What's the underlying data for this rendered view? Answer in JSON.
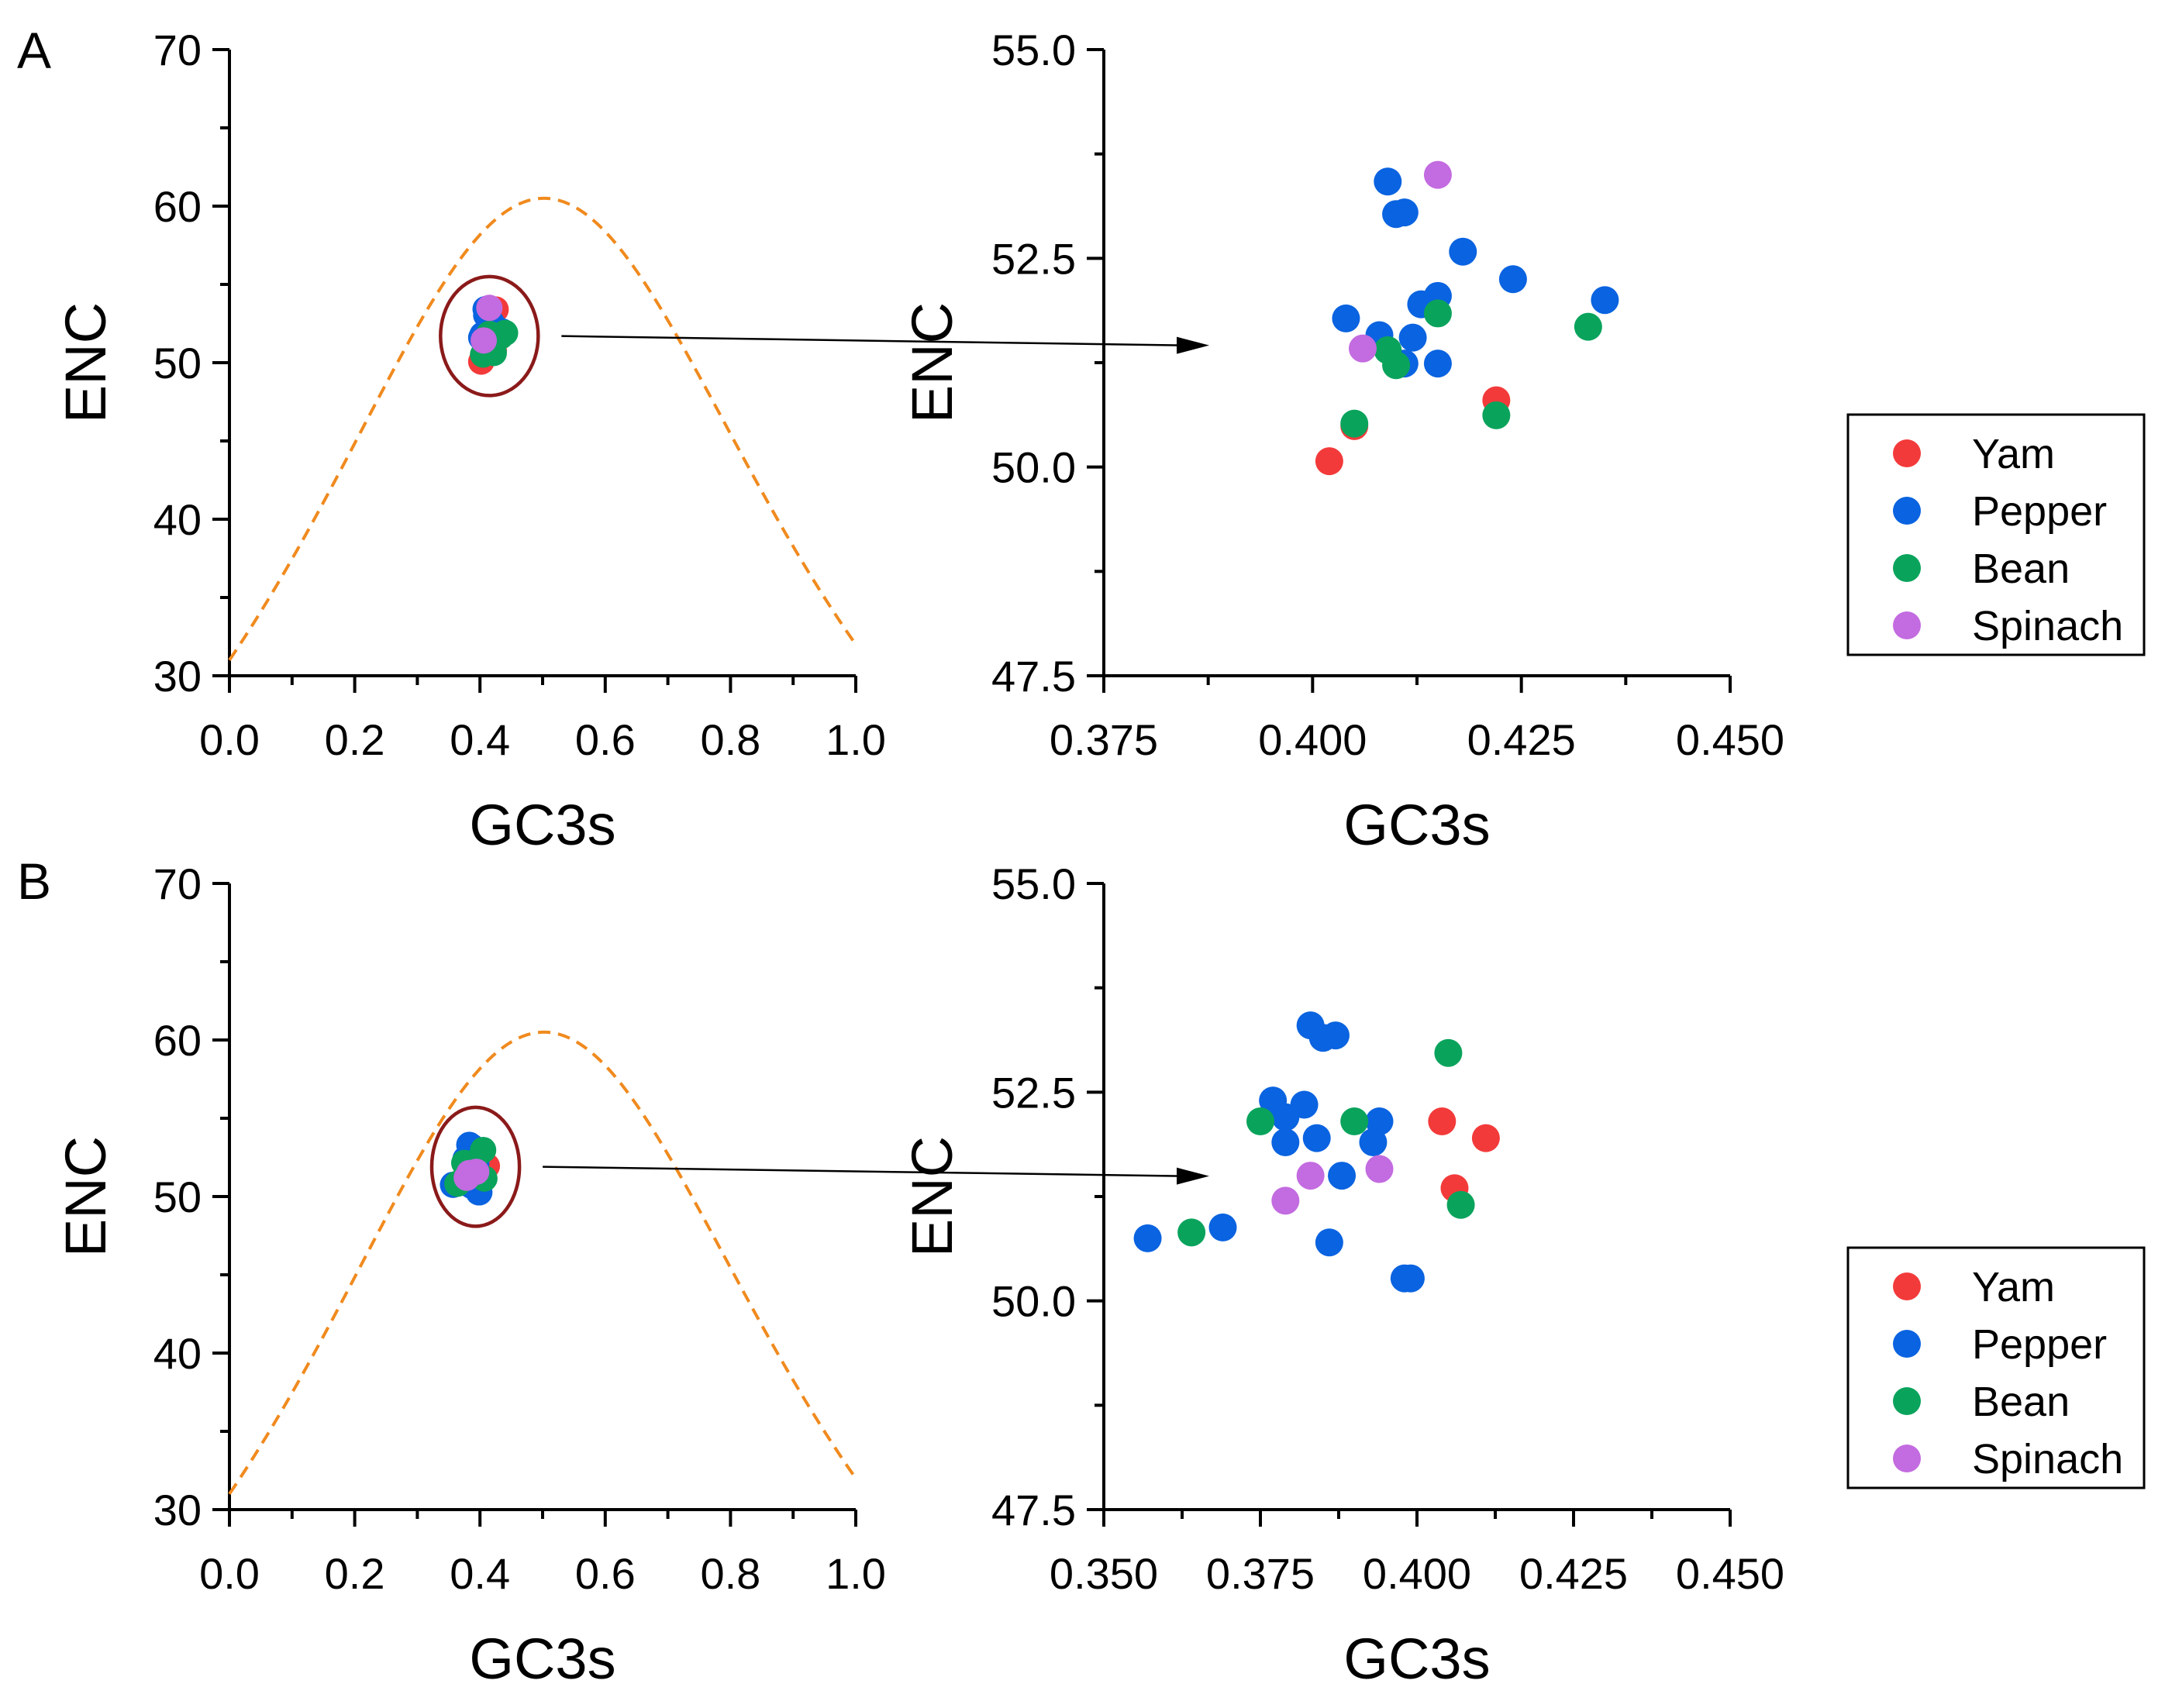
{
  "figure": {
    "panels": [
      {
        "letter": "A"
      },
      {
        "letter": "B"
      }
    ]
  },
  "colors": {
    "Yam": "#f33a3a",
    "Pepper": "#0a63e0",
    "Bean": "#0aa35c",
    "Spinach": "#c36be0",
    "curve": "#f08a1e",
    "ellipse": "#8b1a1a",
    "axis": "#000000"
  },
  "legend": [
    {
      "label": "Yam",
      "color": "#f33a3a"
    },
    {
      "label": "Pepper",
      "color": "#0a63e0"
    },
    {
      "label": "Bean",
      "color": "#0aa35c"
    },
    {
      "label": "Spinach",
      "color": "#c36be0"
    }
  ],
  "chart_data": [
    {
      "id": "A-overview",
      "panel": "A",
      "type": "scatter",
      "xlabel": "GC3s",
      "ylabel": "ENC",
      "xlim": [
        0.0,
        1.0
      ],
      "ylim": [
        30,
        70
      ],
      "xticks": [
        0.0,
        0.2,
        0.4,
        0.6,
        0.8,
        1.0
      ],
      "xtick_labels": [
        "0.0",
        "0.2",
        "0.4",
        "0.6",
        "0.8",
        "1.0"
      ],
      "yticks": [
        30,
        40,
        50,
        60,
        70
      ],
      "ytick_labels": [
        "30",
        "40",
        "50",
        "60",
        "70"
      ],
      "x_minor_step": 0.1,
      "y_minor_step": 5,
      "expected_curve": {
        "formula": "ENC = 2 + GC3s + 29/(GC3s^2 + (1-GC3s)^2)",
        "style": "dashed",
        "color": "#f08a1e"
      },
      "zoom_region": {
        "cx": 0.415,
        "cy": 51.7,
        "rx": 0.078,
        "ry": 3.8
      },
      "series": [
        {
          "name": "Yam",
          "points": [
            [
              0.402,
              50.07
            ],
            [
              0.405,
              50.49
            ],
            [
              0.422,
              50.8
            ],
            [
              0.42,
              51.0
            ],
            [
              0.425,
              53.4
            ]
          ]
        },
        {
          "name": "Pepper",
          "points": [
            [
              0.404,
              51.78
            ],
            [
              0.409,
              53.42
            ],
            [
              0.41,
              53.03
            ],
            [
              0.411,
              53.05
            ],
            [
              0.418,
              52.58
            ],
            [
              0.424,
              52.25
            ],
            [
              0.435,
              52.0
            ],
            [
              0.408,
              51.58
            ],
            [
              0.412,
              51.55
            ],
            [
              0.413,
              51.95
            ],
            [
              0.415,
              52.05
            ],
            [
              0.411,
              51.24
            ],
            [
              0.415,
              51.24
            ],
            [
              0.41,
              51.8
            ],
            [
              0.402,
              51.6
            ]
          ]
        },
        {
          "name": "Bean",
          "points": [
            [
              0.405,
              50.52
            ],
            [
              0.409,
              51.4
            ],
            [
              0.41,
              51.22
            ],
            [
              0.415,
              51.84
            ],
            [
              0.422,
              50.62
            ],
            [
              0.433,
              51.68
            ],
            [
              0.44,
              51.9
            ]
          ]
        },
        {
          "name": "Spinach",
          "points": [
            [
              0.406,
              51.42
            ],
            [
              0.415,
              53.5
            ]
          ]
        }
      ]
    },
    {
      "id": "A-zoom",
      "panel": "A",
      "type": "scatter",
      "xlabel": "GC3s",
      "ylabel": "ENC",
      "xlim": [
        0.375,
        0.45
      ],
      "ylim": [
        47.5,
        55.0
      ],
      "xticks": [
        0.375,
        0.4,
        0.425,
        0.45
      ],
      "xtick_labels": [
        "0.375",
        "0.400",
        "0.425",
        "0.450"
      ],
      "yticks": [
        47.5,
        50.0,
        52.5,
        55.0
      ],
      "ytick_labels": [
        "47.5",
        "50.0",
        "52.5",
        "55.0"
      ],
      "x_minor_step": 0.0125,
      "y_minor_step": 1.25,
      "series": [
        {
          "name": "Yam",
          "points": [
            [
              0.402,
              50.07
            ],
            [
              0.405,
              50.49
            ],
            [
              0.422,
              50.8
            ]
          ]
        },
        {
          "name": "Pepper",
          "points": [
            [
              0.404,
              51.78
            ],
            [
              0.409,
              53.42
            ],
            [
              0.41,
              53.03
            ],
            [
              0.411,
              53.05
            ],
            [
              0.418,
              52.58
            ],
            [
              0.424,
              52.25
            ],
            [
              0.435,
              52.0
            ],
            [
              0.408,
              51.58
            ],
            [
              0.412,
              51.55
            ],
            [
              0.413,
              51.95
            ],
            [
              0.415,
              52.05
            ],
            [
              0.411,
              51.24
            ],
            [
              0.415,
              51.24
            ]
          ]
        },
        {
          "name": "Bean",
          "points": [
            [
              0.405,
              50.52
            ],
            [
              0.409,
              51.4
            ],
            [
              0.41,
              51.22
            ],
            [
              0.415,
              51.84
            ],
            [
              0.422,
              50.62
            ],
            [
              0.433,
              51.68
            ]
          ]
        },
        {
          "name": "Spinach",
          "points": [
            [
              0.406,
              51.42
            ],
            [
              0.415,
              53.5
            ]
          ]
        }
      ]
    },
    {
      "id": "B-overview",
      "panel": "B",
      "type": "scatter",
      "xlabel": "GC3s",
      "ylabel": "ENC",
      "xlim": [
        0.0,
        1.0
      ],
      "ylim": [
        30,
        70
      ],
      "xticks": [
        0.0,
        0.2,
        0.4,
        0.6,
        0.8,
        1.0
      ],
      "xtick_labels": [
        "0.0",
        "0.2",
        "0.4",
        "0.6",
        "0.8",
        "1.0"
      ],
      "yticks": [
        30,
        40,
        50,
        60,
        70
      ],
      "ytick_labels": [
        "30",
        "40",
        "50",
        "60",
        "70"
      ],
      "x_minor_step": 0.1,
      "y_minor_step": 5,
      "expected_curve": {
        "formula": "ENC = 2 + GC3s + 29/(GC3s^2 + (1-GC3s)^2)",
        "style": "dashed",
        "color": "#f08a1e"
      },
      "zoom_region": {
        "cx": 0.393,
        "cy": 51.9,
        "rx": 0.07,
        "ry": 3.8
      },
      "series": [
        {
          "name": "Yam",
          "points": [
            [
              0.404,
              52.15
            ],
            [
              0.411,
              51.95
            ],
            [
              0.406,
              51.35
            ]
          ]
        },
        {
          "name": "Pepper",
          "points": [
            [
              0.357,
              50.75
            ],
            [
              0.369,
              50.88
            ],
            [
              0.383,
              53.3
            ],
            [
              0.385,
              53.15
            ],
            [
              0.387,
              53.18
            ],
            [
              0.377,
              52.4
            ],
            [
              0.379,
              52.2
            ],
            [
              0.382,
              52.35
            ],
            [
              0.384,
              51.95
            ],
            [
              0.379,
              51.9
            ],
            [
              0.394,
              52.15
            ],
            [
              0.393,
              51.9
            ],
            [
              0.388,
              51.5
            ],
            [
              0.386,
              50.7
            ],
            [
              0.398,
              50.27
            ],
            [
              0.399,
              50.27
            ]
          ]
        },
        {
          "name": "Bean",
          "points": [
            [
              0.364,
              50.82
            ],
            [
              0.375,
              52.15
            ],
            [
              0.39,
              52.15
            ],
            [
              0.405,
              52.97
            ],
            [
              0.407,
              51.15
            ]
          ]
        },
        {
          "name": "Spinach",
          "points": [
            [
              0.379,
              51.2
            ],
            [
              0.383,
              51.5
            ],
            [
              0.394,
              51.58
            ]
          ]
        }
      ]
    },
    {
      "id": "B-zoom",
      "panel": "B",
      "type": "scatter",
      "xlabel": "GC3s",
      "ylabel": "ENC",
      "xlim": [
        0.35,
        0.45
      ],
      "ylim": [
        47.5,
        55.0
      ],
      "xticks": [
        0.35,
        0.375,
        0.4,
        0.425,
        0.45
      ],
      "xtick_labels": [
        "0.350",
        "0.375",
        "0.400",
        "0.425",
        "0.450"
      ],
      "yticks": [
        47.5,
        50.0,
        52.5,
        55.0
      ],
      "ytick_labels": [
        "47.5",
        "50.0",
        "52.5",
        "55.0"
      ],
      "x_minor_step": 0.0125,
      "y_minor_step": 1.25,
      "series": [
        {
          "name": "Yam",
          "points": [
            [
              0.404,
              52.15
            ],
            [
              0.411,
              51.95
            ],
            [
              0.406,
              51.35
            ]
          ]
        },
        {
          "name": "Pepper",
          "points": [
            [
              0.357,
              50.75
            ],
            [
              0.369,
              50.88
            ],
            [
              0.383,
              53.3
            ],
            [
              0.385,
              53.15
            ],
            [
              0.387,
              53.18
            ],
            [
              0.377,
              52.4
            ],
            [
              0.379,
              52.2
            ],
            [
              0.382,
              52.35
            ],
            [
              0.384,
              51.95
            ],
            [
              0.379,
              51.9
            ],
            [
              0.394,
              52.15
            ],
            [
              0.393,
              51.9
            ],
            [
              0.388,
              51.5
            ],
            [
              0.386,
              50.7
            ],
            [
              0.398,
              50.27
            ],
            [
              0.399,
              50.27
            ]
          ]
        },
        {
          "name": "Bean",
          "points": [
            [
              0.364,
              50.82
            ],
            [
              0.375,
              52.15
            ],
            [
              0.39,
              52.15
            ],
            [
              0.405,
              52.97
            ],
            [
              0.407,
              51.15
            ]
          ]
        },
        {
          "name": "Spinach",
          "points": [
            [
              0.379,
              51.2
            ],
            [
              0.383,
              51.5
            ],
            [
              0.394,
              51.58
            ]
          ]
        }
      ]
    }
  ]
}
